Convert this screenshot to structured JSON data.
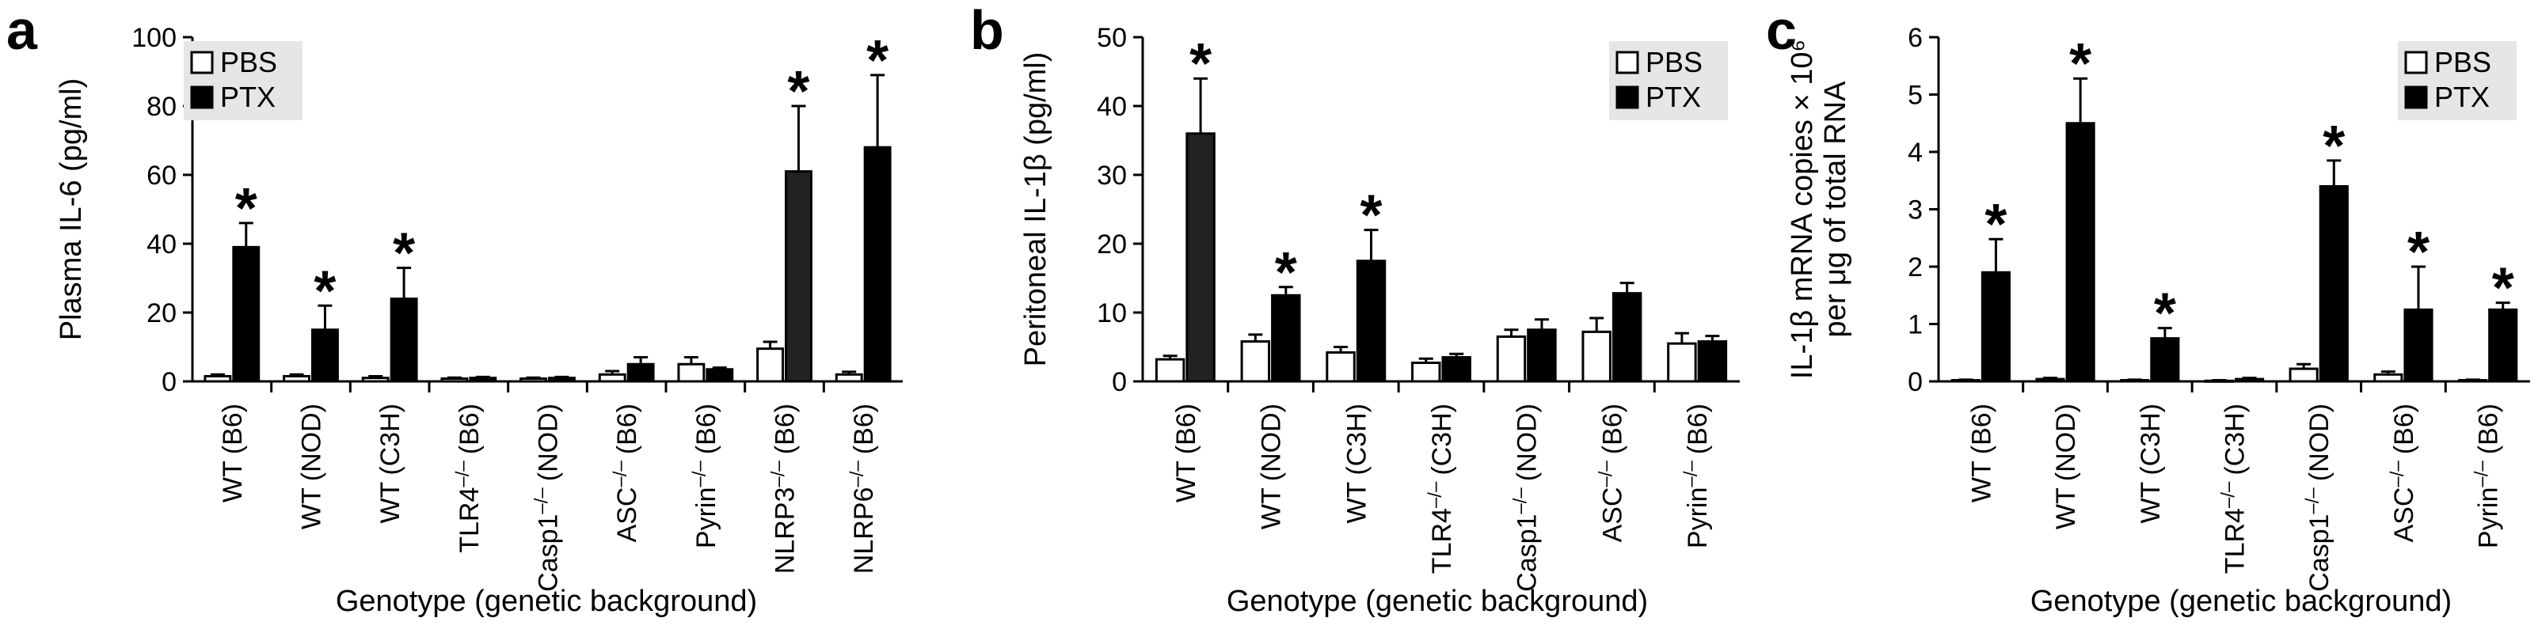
{
  "figure": {
    "legend": {
      "entries": [
        {
          "label": "PBS",
          "fill": "#ffffff"
        },
        {
          "label": "PTX",
          "fill": "#000000"
        }
      ],
      "background": "#e6e6e6"
    },
    "colors": {
      "pbs": "#ffffff",
      "ptx": "#000000",
      "ptx_alt": "#222222",
      "axis": "#000000"
    }
  },
  "chart_data": [
    {
      "panel": "a",
      "type": "bar",
      "ylabel": "Plasma IL-6 (pg/ml)",
      "xlabel": "Genotype (genetic background)",
      "ylim": [
        0,
        100
      ],
      "yticks": [
        0,
        20,
        40,
        60,
        80,
        100
      ],
      "legend_position": "top-left",
      "categories": [
        {
          "gene": "WT",
          "sup": "",
          "bg": "(B6)"
        },
        {
          "gene": "WT",
          "sup": "",
          "bg": "(NOD)"
        },
        {
          "gene": "WT",
          "sup": "",
          "bg": "(C3H)"
        },
        {
          "gene": "TLR4",
          "sup": "–/–",
          "bg": "(B6)"
        },
        {
          "gene": "Casp1",
          "sup": "–/–",
          "bg": "(NOD)"
        },
        {
          "gene": "ASC",
          "sup": "–/–",
          "bg": "(B6)"
        },
        {
          "gene": "Pyrin",
          "sup": "–/–",
          "bg": "(B6)"
        },
        {
          "gene": "NLRP3",
          "sup": "–/–",
          "bg": "(B6)"
        },
        {
          "gene": "NLRP6",
          "sup": "–/–",
          "bg": "(B6)"
        }
      ],
      "series": [
        {
          "name": "PBS",
          "values": [
            1.5,
            1.5,
            1.0,
            0.8,
            0.8,
            2.0,
            5.0,
            9.5,
            2.0
          ],
          "errors": [
            0.5,
            0.5,
            0.5,
            0.3,
            0.3,
            1.0,
            2.0,
            2.0,
            0.8
          ]
        },
        {
          "name": "PTX",
          "values": [
            39,
            15,
            24,
            1.0,
            1.0,
            5.0,
            3.5,
            61,
            68
          ],
          "errors": [
            7,
            7,
            9,
            0.3,
            0.3,
            2.0,
            0.5,
            19,
            21
          ]
        }
      ],
      "significant": [
        0,
        1,
        2,
        7,
        8
      ],
      "significance_mark": "*"
    },
    {
      "panel": "b",
      "type": "bar",
      "ylabel": "Peritoneal IL-1β (pg/ml)",
      "xlabel": "Genotype (genetic background)",
      "ylim": [
        0,
        50
      ],
      "yticks": [
        0,
        10,
        20,
        30,
        40,
        50
      ],
      "legend_position": "top-right",
      "categories": [
        {
          "gene": "WT",
          "sup": "",
          "bg": "(B6)"
        },
        {
          "gene": "WT",
          "sup": "",
          "bg": "(NOD)"
        },
        {
          "gene": "WT",
          "sup": "",
          "bg": "(C3H)"
        },
        {
          "gene": "TLR4",
          "sup": "–/–",
          "bg": "(C3H)"
        },
        {
          "gene": "Casp1",
          "sup": "–/–",
          "bg": "(NOD)"
        },
        {
          "gene": "ASC",
          "sup": "–/–",
          "bg": "(B6)"
        },
        {
          "gene": "Pyrin",
          "sup": "–/–",
          "bg": "(B6)"
        }
      ],
      "series": [
        {
          "name": "PBS",
          "values": [
            3.2,
            5.8,
            4.2,
            2.7,
            6.5,
            7.2,
            5.5
          ],
          "errors": [
            0.5,
            1.0,
            0.8,
            0.6,
            1.0,
            2.0,
            1.5
          ]
        },
        {
          "name": "PTX",
          "values": [
            36,
            12.5,
            17.5,
            3.5,
            7.5,
            12.8,
            5.8
          ],
          "errors": [
            8,
            1.2,
            4.5,
            0.5,
            1.5,
            1.5,
            0.8
          ]
        }
      ],
      "significant": [
        0,
        1,
        2
      ],
      "significance_mark": "*"
    },
    {
      "panel": "c",
      "type": "bar",
      "ylabel": "IL-1β mRNA copies × 10⁶",
      "ylabel_line2": "per μg of total RNA",
      "xlabel": "Genotype (genetic background)",
      "ylim": [
        0,
        6
      ],
      "yticks": [
        0,
        1,
        2,
        3,
        4,
        5,
        6
      ],
      "legend_position": "top-right",
      "categories": [
        {
          "gene": "WT",
          "sup": "",
          "bg": "(B6)"
        },
        {
          "gene": "WT",
          "sup": "",
          "bg": "(NOD)"
        },
        {
          "gene": "WT",
          "sup": "",
          "bg": "(C3H)"
        },
        {
          "gene": "TLR4",
          "sup": "–/–",
          "bg": "(C3H)"
        },
        {
          "gene": "Casp1",
          "sup": "–/–",
          "bg": "(NOD)"
        },
        {
          "gene": "ASC",
          "sup": "–/–",
          "bg": "(B6)"
        },
        {
          "gene": "Pyrin",
          "sup": "–/–",
          "bg": "(B6)"
        }
      ],
      "series": [
        {
          "name": "PBS",
          "values": [
            0.02,
            0.04,
            0.02,
            0.01,
            0.22,
            0.12,
            0.02
          ],
          "errors": [
            0.01,
            0.02,
            0.01,
            0.01,
            0.08,
            0.05,
            0.01
          ]
        },
        {
          "name": "PTX",
          "values": [
            1.9,
            4.5,
            0.75,
            0.04,
            3.4,
            1.25,
            1.25
          ],
          "errors": [
            0.58,
            0.78,
            0.18,
            0.02,
            0.45,
            0.75,
            0.12
          ]
        }
      ],
      "significant": [
        0,
        1,
        2,
        4,
        5,
        6
      ],
      "significance_mark": "*"
    }
  ]
}
